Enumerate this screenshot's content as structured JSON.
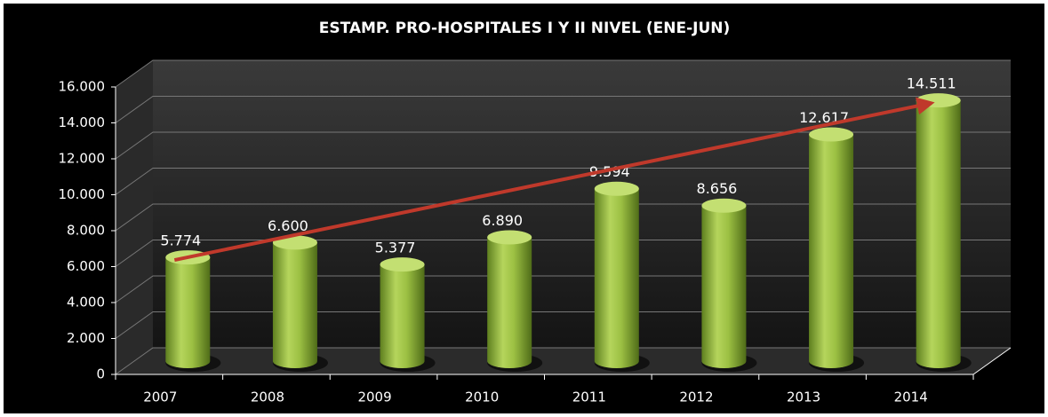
{
  "chart_data": {
    "type": "bar",
    "title": "ESTAMP. PRO-HOSPITALES I Y II NIVEL (ENE-JUN)",
    "categories": [
      "2007",
      "2008",
      "2009",
      "2010",
      "2011",
      "2012",
      "2013",
      "2014"
    ],
    "values": [
      5774,
      6600,
      5377,
      6890,
      9594,
      8656,
      12617,
      14511
    ],
    "value_labels": [
      "5.774",
      "6.600",
      "5.377",
      "6.890",
      "9.594",
      "8.656",
      "12.617",
      "14.511"
    ],
    "color": "#9cc043",
    "ylim": [
      0,
      16000
    ],
    "yticks": [
      0,
      {
        "value": 2000,
        "label": "2.000"
      },
      {
        "value": 4000,
        "label": "4.000"
      },
      {
        "value": 6000,
        "label": "6.000"
      },
      {
        "value": 8000,
        "label": "8.000"
      },
      {
        "value": 10000,
        "label": "10.000"
      },
      {
        "value": 12000,
        "label": "12.000"
      },
      {
        "value": 14000,
        "label": "14.000"
      },
      {
        "value": 16000,
        "label": "16.000"
      }
    ],
    "grid": true
  }
}
